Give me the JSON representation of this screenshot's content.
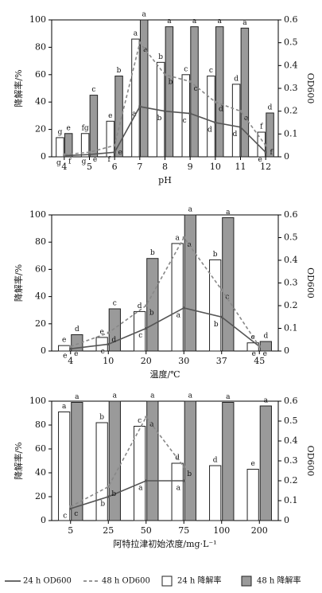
{
  "chart_data": [
    {
      "type": "combo",
      "x_label": "pH",
      "y_label": "降解率/%",
      "y2_label": "OD600",
      "categories": [
        "4",
        "5",
        "6",
        "7",
        "8",
        "9",
        "10",
        "11",
        "12"
      ],
      "ylim": [
        0,
        100
      ],
      "yticks": [
        0,
        20,
        40,
        60,
        80,
        100
      ],
      "y2lim": [
        0,
        0.6
      ],
      "y2ticks": [
        0,
        0.1,
        0.2,
        0.3,
        0.4,
        0.5,
        0.6
      ],
      "series": [
        {
          "name": "24 h OD600",
          "kind": "line",
          "dashed": false,
          "axis": "y2",
          "color": "#555555",
          "values": [
            0.005,
            0.01,
            0.02,
            0.22,
            0.2,
            0.19,
            0.15,
            0.13,
            0.02
          ],
          "letters": [
            "g",
            "g",
            "f",
            "a",
            "b",
            "c",
            "d",
            "d",
            "e"
          ]
        },
        {
          "name": "48 h OD600",
          "kind": "line",
          "dashed": true,
          "axis": "y2",
          "color": "#888888",
          "values": [
            0.01,
            0.02,
            0.05,
            0.5,
            0.36,
            0.33,
            0.24,
            0.2,
            0.05
          ],
          "letters": [
            "f",
            "e",
            "e",
            "a",
            "b",
            "c",
            "d",
            "e",
            "f"
          ]
        },
        {
          "name": "24 h 降解率",
          "kind": "bar",
          "color": "#ffffff",
          "values": [
            14,
            17,
            26,
            86,
            69,
            60,
            59,
            53,
            18
          ],
          "letters": [
            "g",
            "fg",
            "e",
            "a",
            "b",
            "c",
            "c",
            "d",
            "f"
          ]
        },
        {
          "name": "48 h 降解率",
          "kind": "bar",
          "color": "#9a9a9a",
          "values": [
            17,
            45,
            59,
            100,
            95,
            95,
            95,
            94,
            32
          ],
          "letters": [
            "e",
            "c",
            "b",
            "a",
            "a",
            "a",
            "a",
            "a",
            "d"
          ]
        }
      ]
    },
    {
      "type": "combo",
      "x_label": "温度/℃",
      "y_label": "降解率/%",
      "y2_label": "OD600",
      "categories": [
        "4",
        "10",
        "20",
        "30",
        "37",
        "45"
      ],
      "ylim": [
        0,
        100
      ],
      "yticks": [
        0,
        20,
        40,
        60,
        80,
        100
      ],
      "y2lim": [
        0,
        0.6
      ],
      "y2ticks": [
        0,
        0.1,
        0.2,
        0.3,
        0.4,
        0.5,
        0.6
      ],
      "series": [
        {
          "kind": "line",
          "dashed": false,
          "axis": "y2",
          "color": "#555555",
          "values": [
            0.01,
            0.03,
            0.1,
            0.19,
            0.15,
            0.02
          ],
          "letters": [
            "e",
            "e",
            "c",
            "a",
            "b",
            "e"
          ]
        },
        {
          "kind": "line",
          "dashed": true,
          "axis": "y2",
          "color": "#888888",
          "values": [
            0.02,
            0.08,
            0.2,
            0.5,
            0.27,
            0.02
          ],
          "letters": [
            "e",
            "d",
            "b",
            "a",
            "c",
            "e"
          ]
        },
        {
          "kind": "bar",
          "color": "#ffffff",
          "values": [
            4,
            10,
            29,
            79,
            67,
            6
          ],
          "letters": [
            "e",
            "e",
            "d",
            "a",
            "b",
            "e"
          ]
        },
        {
          "kind": "bar",
          "color": "#9a9a9a",
          "values": [
            12,
            31,
            68,
            100,
            98,
            7
          ],
          "letters": [
            "d",
            "c",
            "b",
            "a",
            "a",
            "d"
          ]
        }
      ]
    },
    {
      "type": "combo",
      "x_label": "阿特拉津初始浓度/mg·L⁻¹",
      "y_label": "降解率/%",
      "y2_label": "OD600",
      "categories": [
        "5",
        "25",
        "50",
        "75",
        "100",
        "200"
      ],
      "ylim": [
        0,
        100
      ],
      "yticks": [
        0,
        20,
        40,
        60,
        80,
        100
      ],
      "y2lim": [
        0,
        0.6
      ],
      "y2ticks": [
        0,
        0.1,
        0.2,
        0.3,
        0.4,
        0.5,
        0.6
      ],
      "series": [
        {
          "kind": "line",
          "dashed": false,
          "axis": "y2",
          "color": "#555555",
          "values": [
            0.06,
            0.12,
            0.2,
            0.2,
            null,
            null
          ],
          "letters": [
            "c",
            "b",
            "a",
            "a",
            null,
            null
          ]
        },
        {
          "kind": "line",
          "dashed": true,
          "axis": "y2",
          "color": "#888888",
          "values": [
            0.07,
            0.17,
            0.52,
            0.27,
            null,
            null
          ],
          "letters": [
            "c",
            "b",
            "a",
            "b",
            null,
            null
          ]
        },
        {
          "kind": "bar",
          "color": "#ffffff",
          "values": [
            91,
            82,
            79,
            48,
            46,
            43
          ],
          "letters": [
            "a",
            "b",
            "c",
            "d",
            "d",
            "e"
          ]
        },
        {
          "kind": "bar",
          "color": "#9a9a9a",
          "values": [
            99,
            100,
            100,
            100,
            99,
            96
          ],
          "letters": [
            "a",
            "a",
            "a",
            "a",
            "a",
            "a"
          ]
        }
      ]
    }
  ]
}
